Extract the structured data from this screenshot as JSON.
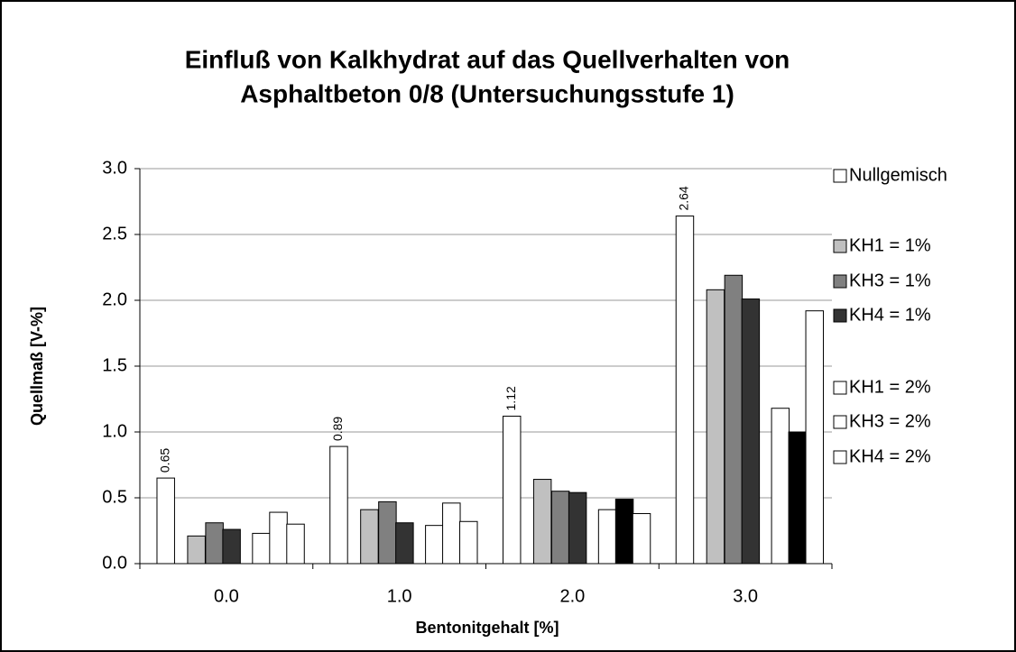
{
  "chart_data": {
    "type": "bar",
    "title": [
      "Einfluß von Kalkhydrat auf das Quellverhalten von",
      "Asphaltbeton 0/8 (Untersuchungsstufe 1)"
    ],
    "x_label": "Bentonitgehalt [%]",
    "y_label": "Quellmaß [V-%]",
    "categories": [
      "0.0",
      "1.0",
      "2.0",
      "3.0"
    ],
    "series": [
      {
        "name": "Nullgemisch",
        "color": "#ffffff",
        "values": [
          0.65,
          0.89,
          1.12,
          2.64
        ],
        "show_labels": true
      },
      {
        "name": "KH1 = 1%",
        "color": "#c0c0c0",
        "values": [
          0.21,
          0.41,
          0.64,
          2.08
        ]
      },
      {
        "name": "KH3 = 1%",
        "color": "#808080",
        "values": [
          0.31,
          0.47,
          0.55,
          2.19
        ]
      },
      {
        "name": "KH4 = 1%",
        "color": "#333333",
        "values": [
          0.26,
          0.31,
          0.54,
          2.01
        ]
      },
      {
        "name": "KH1 = 2%",
        "color": "#ffffff",
        "values": [
          0.23,
          0.29,
          0.41,
          1.18
        ]
      },
      {
        "name": "KH3 = 2%",
        "color": "#ffffff",
        "colors": [
          "#ffffff",
          "#ffffff",
          "#000000",
          "#000000"
        ],
        "values": [
          0.39,
          0.46,
          0.49,
          1.0
        ]
      },
      {
        "name": "KH4 = 2%",
        "color": "#ffffff",
        "values": [
          0.3,
          0.32,
          0.38,
          1.92
        ]
      }
    ],
    "ylim": [
      0,
      3
    ],
    "yticks": [
      {
        "value": 0,
        "label": "0.0"
      },
      {
        "value": 0.5,
        "label": "0.5"
      },
      {
        "value": 1,
        "label": "1.0"
      },
      {
        "value": 1.5,
        "label": "1.5"
      },
      {
        "value": 2,
        "label": "2.0"
      },
      {
        "value": 2.5,
        "label": "2.5"
      },
      {
        "value": 3,
        "label": "3.0"
      }
    ],
    "grid": true,
    "legend": "right"
  }
}
